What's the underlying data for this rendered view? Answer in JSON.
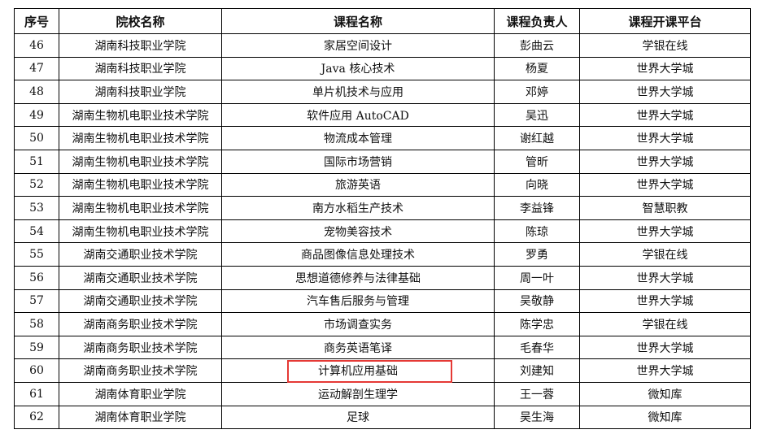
{
  "table": {
    "headers": [
      "序号",
      "院校名称",
      "课程名称",
      "课程负责人",
      "课程开课平台"
    ],
    "rows": [
      [
        "46",
        "湖南科技职业学院",
        "家居空间设计",
        "彭曲云",
        "学银在线"
      ],
      [
        "47",
        "湖南科技职业学院",
        "Java 核心技术",
        "杨夏",
        "世界大学城"
      ],
      [
        "48",
        "湖南科技职业学院",
        "单片机技术与应用",
        "邓婷",
        "世界大学城"
      ],
      [
        "49",
        "湖南生物机电职业技术学院",
        "软件应用 AutoCAD",
        "吴迅",
        "世界大学城"
      ],
      [
        "50",
        "湖南生物机电职业技术学院",
        "物流成本管理",
        "谢红越",
        "世界大学城"
      ],
      [
        "51",
        "湖南生物机电职业技术学院",
        "国际市场营销",
        "管昕",
        "世界大学城"
      ],
      [
        "52",
        "湖南生物机电职业技术学院",
        "旅游英语",
        "向晓",
        "世界大学城"
      ],
      [
        "53",
        "湖南生物机电职业技术学院",
        "南方水稻生产技术",
        "李益锋",
        "智慧职教"
      ],
      [
        "54",
        "湖南生物机电职业技术学院",
        "宠物美容技术",
        "陈琼",
        "世界大学城"
      ],
      [
        "55",
        "湖南交通职业技术学院",
        "商品图像信息处理技术",
        "罗勇",
        "学银在线"
      ],
      [
        "56",
        "湖南交通职业技术学院",
        "思想道德修养与法律基础",
        "周一叶",
        "世界大学城"
      ],
      [
        "57",
        "湖南交通职业技术学院",
        "汽车售后服务与管理",
        "吴敬静",
        "世界大学城"
      ],
      [
        "58",
        "湖南商务职业技术学院",
        "市场调查实务",
        "陈学忠",
        "学银在线"
      ],
      [
        "59",
        "湖南商务职业技术学院",
        "商务英语笔译",
        "毛春华",
        "世界大学城"
      ],
      [
        "60",
        "湖南商务职业技术学院",
        "计算机应用基础",
        "刘建知",
        "世界大学城"
      ],
      [
        "61",
        "湖南体育职业学院",
        "运动解剖生理学",
        "王一蓉",
        "微知库"
      ],
      [
        "62",
        "湖南体育职业学院",
        "足球",
        "吴生海",
        "微知库"
      ]
    ],
    "highlight_color": "#e53935"
  }
}
